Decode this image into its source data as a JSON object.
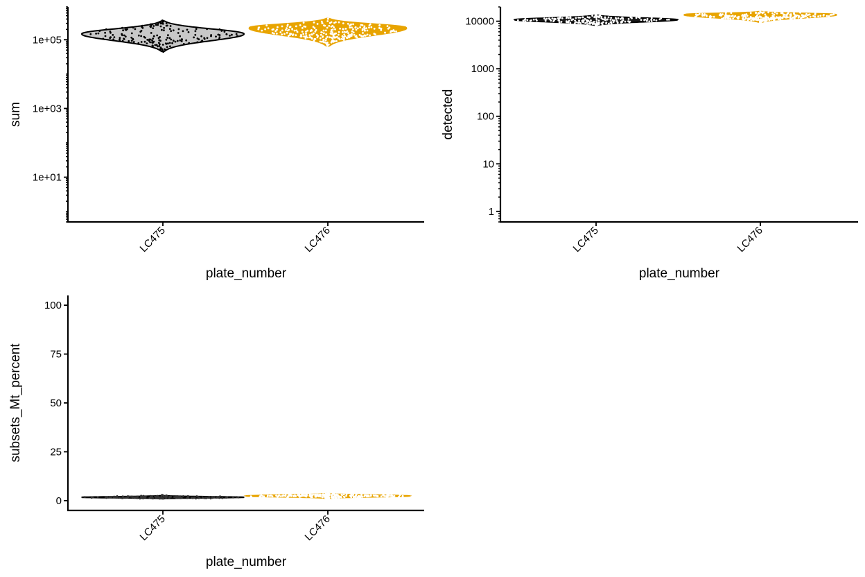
{
  "chart_data": [
    {
      "type": "violin",
      "xlabel": "plate_number",
      "ylabel": "sum",
      "yscale": "log10",
      "ylim": [
        0.5,
        900000
      ],
      "y_ticks": [
        {
          "value": 10,
          "label": "1e+01"
        },
        {
          "value": 1000,
          "label": "1e+03"
        },
        {
          "value": 100000,
          "label": "1e+05"
        }
      ],
      "minor_ticks": true,
      "categories": [
        "LC475",
        "LC476"
      ],
      "series": [
        {
          "category": "LC475",
          "fill": "#c8c8c8",
          "outline": "#000000",
          "points_color": "#000000",
          "y_min": 45000,
          "y_max": 360000,
          "y_mode": 150000,
          "n_points": 180
        },
        {
          "category": "LC476",
          "fill": "#e8a400",
          "outline": "#e8a400",
          "points_color": "#ffffff",
          "y_min": 65000,
          "y_max": 420000,
          "y_mode": 230000,
          "n_points": 260
        }
      ],
      "grid": false,
      "legend": "none"
    },
    {
      "type": "violin",
      "xlabel": "plate_number",
      "ylabel": "detected",
      "yscale": "log10",
      "ylim": [
        0.6,
        20000
      ],
      "y_ticks": [
        {
          "value": 1,
          "label": "1"
        },
        {
          "value": 10,
          "label": "10"
        },
        {
          "value": 100,
          "label": "100"
        },
        {
          "value": 1000,
          "label": "1000"
        },
        {
          "value": 10000,
          "label": "10000"
        }
      ],
      "minor_ticks": true,
      "categories": [
        "LC475",
        "LC476"
      ],
      "series": [
        {
          "category": "LC475",
          "fill": "#1a1a1a",
          "outline": "#000000",
          "points_color": "#ffffff",
          "y_min": 8200,
          "y_max": 13500,
          "y_mode": 10800,
          "n_points": 180
        },
        {
          "category": "LC476",
          "fill": "#e8a400",
          "outline": "#e8a400",
          "points_color": "#ffffff",
          "y_min": 9500,
          "y_max": 16000,
          "y_mode": 14000,
          "n_points": 260
        }
      ],
      "grid": false,
      "legend": "none"
    },
    {
      "type": "violin",
      "xlabel": "plate_number",
      "ylabel": "subsets_Mt_percent",
      "yscale": "linear",
      "ylim": [
        -5,
        105
      ],
      "y_ticks": [
        {
          "value": 0,
          "label": "0"
        },
        {
          "value": 25,
          "label": "25"
        },
        {
          "value": 50,
          "label": "50"
        },
        {
          "value": 75,
          "label": "75"
        },
        {
          "value": 100,
          "label": "100"
        }
      ],
      "minor_ticks": false,
      "categories": [
        "LC475",
        "LC476"
      ],
      "series": [
        {
          "category": "LC475",
          "fill": "#111111",
          "outline": "#000000",
          "points_color": "#333333",
          "y_min": 1.0,
          "y_max": 2.6,
          "y_mode": 1.7,
          "n_points": 180
        },
        {
          "category": "LC476",
          "fill": "#e8a400",
          "outline": "#e8a400",
          "points_color": "#ffffff",
          "y_min": 1.2,
          "y_max": 3.6,
          "y_mode": 2.4,
          "n_points": 260
        }
      ],
      "grid": false,
      "legend": "none"
    }
  ]
}
